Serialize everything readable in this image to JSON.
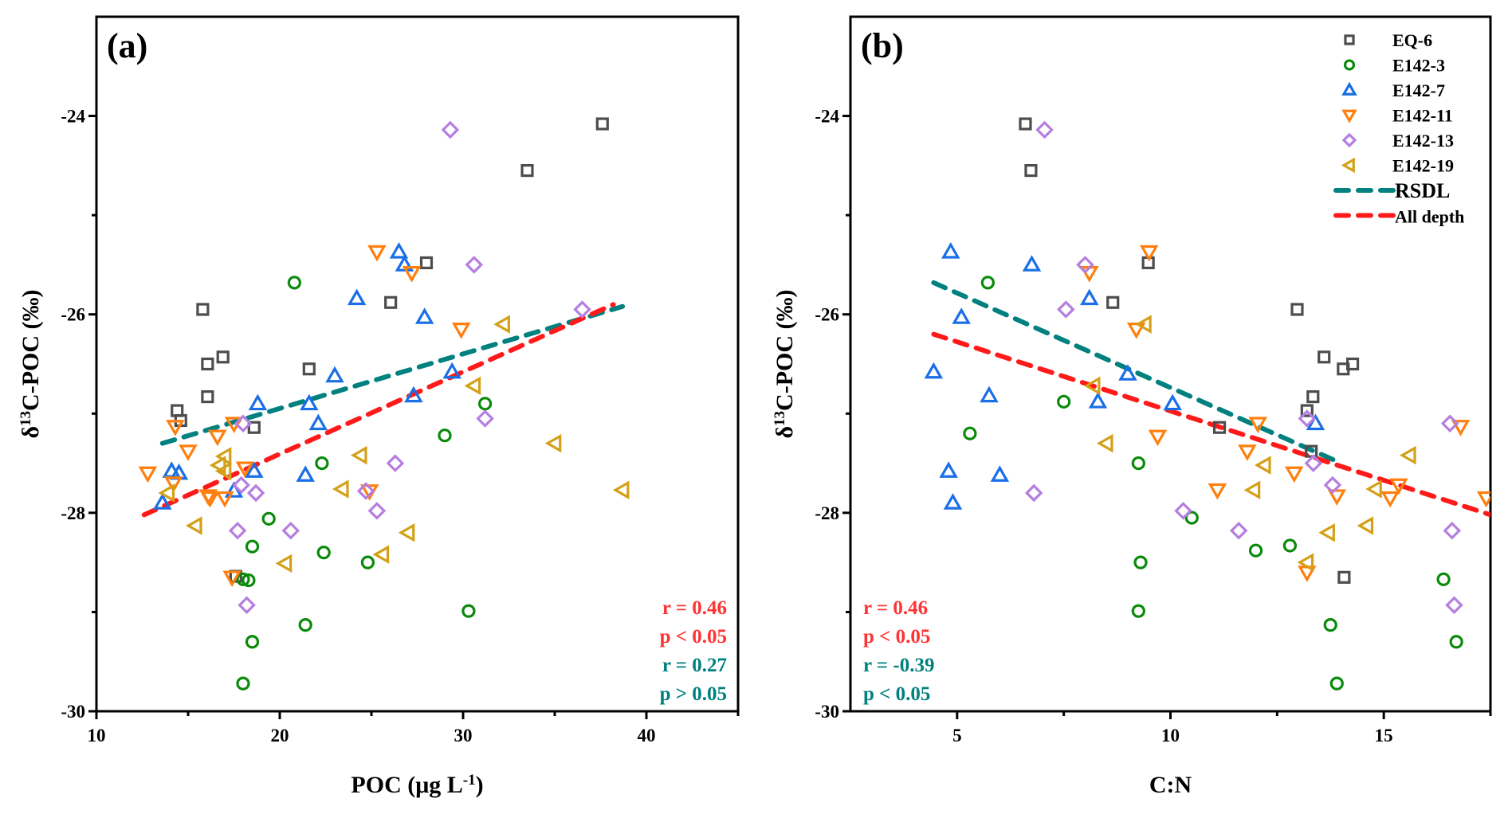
{
  "figure": {
    "ylabel_main": "C-POC (‰)",
    "ylabel_delta": "δ",
    "ylabel_sup": "13"
  },
  "chart_data": [
    {
      "type": "scatter",
      "panel_label": "(a)",
      "xlabel": "POC (μg L",
      "xlabel_sup": "-1",
      "xlabel_end": ")",
      "ylabel": "δ13C-POC (‰)",
      "xlim": [
        10,
        45
      ],
      "ylim": [
        -30,
        -23
      ],
      "xticks": [
        10,
        20,
        30,
        40
      ],
      "xminor": [
        15,
        25,
        35,
        45
      ],
      "yticks": [
        -30,
        -28,
        -26,
        -24
      ],
      "yminor": [
        -29,
        -27,
        -25
      ],
      "series": [
        {
          "name": "EQ-6",
          "marker": "square",
          "color": "#4d4d4d",
          "points": [
            [
              37.6,
              -24.08
            ],
            [
              33.5,
              -24.55
            ],
            [
              28.0,
              -25.48
            ],
            [
              26.05,
              -25.88
            ],
            [
              15.8,
              -25.95
            ],
            [
              21.6,
              -26.55
            ],
            [
              16.9,
              -26.43
            ],
            [
              16.06,
              -26.5
            ],
            [
              16.06,
              -26.83
            ],
            [
              14.4,
              -26.97
            ],
            [
              14.6,
              -27.07
            ],
            [
              18.6,
              -27.14
            ],
            [
              17.6,
              -28.64
            ]
          ]
        },
        {
          "name": "E142-3",
          "marker": "circle",
          "color": "#0a8a0a",
          "points": [
            [
              20.8,
              -25.68
            ],
            [
              31.2,
              -26.9
            ],
            [
              29.0,
              -27.22
            ],
            [
              22.3,
              -27.5
            ],
            [
              19.4,
              -28.06
            ],
            [
              18.5,
              -28.34
            ],
            [
              22.4,
              -28.4
            ],
            [
              24.8,
              -28.5
            ],
            [
              18.0,
              -28.67
            ],
            [
              18.3,
              -28.68
            ],
            [
              30.3,
              -28.99
            ],
            [
              21.4,
              -29.13
            ],
            [
              18.5,
              -29.3
            ],
            [
              18.0,
              -29.72
            ]
          ]
        },
        {
          "name": "E142-7",
          "marker": "triangle-up",
          "color": "#1a6fe6",
          "points": [
            [
              26.5,
              -25.37
            ],
            [
              26.8,
              -25.5
            ],
            [
              24.2,
              -25.84
            ],
            [
              27.9,
              -26.03
            ],
            [
              23.0,
              -26.62
            ],
            [
              29.4,
              -26.58
            ],
            [
              18.8,
              -26.9
            ],
            [
              21.6,
              -26.9
            ],
            [
              27.3,
              -26.82
            ],
            [
              22.1,
              -27.1
            ],
            [
              14.1,
              -27.58
            ],
            [
              14.5,
              -27.6
            ],
            [
              18.6,
              -27.58
            ],
            [
              21.4,
              -27.62
            ],
            [
              17.5,
              -27.78
            ],
            [
              13.6,
              -27.9
            ]
          ]
        },
        {
          "name": "E142-11",
          "marker": "triangle-down",
          "color": "#ff7f0e",
          "points": [
            [
              25.3,
              -25.37
            ],
            [
              27.2,
              -25.58
            ],
            [
              29.9,
              -26.15
            ],
            [
              14.3,
              -27.13
            ],
            [
              17.5,
              -27.1
            ],
            [
              16.6,
              -27.23
            ],
            [
              15.0,
              -27.38
            ],
            [
              12.8,
              -27.6
            ],
            [
              14.2,
              -27.7
            ],
            [
              18.1,
              -27.55
            ],
            [
              24.9,
              -27.78
            ],
            [
              16.1,
              -27.83
            ],
            [
              16.2,
              -27.85
            ],
            [
              17.0,
              -27.85
            ],
            [
              17.4,
              -28.65
            ]
          ]
        },
        {
          "name": "E142-13",
          "marker": "diamond",
          "color": "#b57ee0",
          "points": [
            [
              29.3,
              -24.14
            ],
            [
              36.5,
              -25.95
            ],
            [
              30.6,
              -25.5
            ],
            [
              31.2,
              -27.05
            ],
            [
              18.0,
              -27.1
            ],
            [
              26.3,
              -27.5
            ],
            [
              17.9,
              -27.72
            ],
            [
              24.7,
              -27.78
            ],
            [
              18.7,
              -27.8
            ],
            [
              25.3,
              -27.98
            ],
            [
              20.6,
              -28.18
            ],
            [
              17.7,
              -28.18
            ],
            [
              18.2,
              -28.93
            ]
          ]
        },
        {
          "name": "E142-19",
          "marker": "triangle-left",
          "color": "#d4a017",
          "points": [
            [
              32.2,
              -26.1
            ],
            [
              30.6,
              -26.72
            ],
            [
              35.0,
              -27.3
            ],
            [
              24.4,
              -27.42
            ],
            [
              17.0,
              -27.43
            ],
            [
              16.7,
              -27.52
            ],
            [
              17.0,
              -27.58
            ],
            [
              13.9,
              -27.8
            ],
            [
              23.4,
              -27.76
            ],
            [
              38.7,
              -27.77
            ],
            [
              15.4,
              -28.13
            ],
            [
              27.0,
              -28.2
            ],
            [
              20.3,
              -28.51
            ],
            [
              25.6,
              -28.42
            ]
          ]
        }
      ],
      "fit_lines": [
        {
          "name": "RSDL",
          "color": "#00807f",
          "from": [
            13.6,
            -27.3
          ],
          "to": [
            38.7,
            -25.92
          ]
        },
        {
          "name": "All depth",
          "color": "#ff1a1a",
          "from": [
            12.6,
            -28.02
          ],
          "to": [
            38.2,
            -25.9
          ]
        }
      ],
      "stats": [
        {
          "text": "r = 0.46",
          "color": "#ff3333"
        },
        {
          "text": "p < 0.05",
          "color": "#ff3333"
        },
        {
          "text": "r = 0.27",
          "color": "#00807f"
        },
        {
          "text": "p > 0.05",
          "color": "#00807f"
        }
      ],
      "stats_position": "bottom-right",
      "legend": false
    },
    {
      "type": "scatter",
      "panel_label": "(b)",
      "xlabel": "C:N",
      "ylabel": "δ13C-POC (‰)",
      "xlim": [
        2.5,
        17.5
      ],
      "ylim": [
        -30,
        -23
      ],
      "xticks": [
        5,
        10,
        15
      ],
      "xminor": [
        7.5,
        12.5,
        17.5
      ],
      "yticks": [
        -30,
        -28,
        -26,
        -24
      ],
      "yminor": [
        -29,
        -27,
        -25
      ],
      "series": [
        {
          "name": "EQ-6",
          "marker": "square",
          "color": "#4d4d4d",
          "points": [
            [
              6.6,
              -24.08
            ],
            [
              6.73,
              -24.55
            ],
            [
              9.48,
              -25.48
            ],
            [
              8.65,
              -25.88
            ],
            [
              12.97,
              -25.95
            ],
            [
              13.6,
              -26.43
            ],
            [
              14.27,
              -26.5
            ],
            [
              14.05,
              -26.55
            ],
            [
              13.34,
              -26.83
            ],
            [
              13.2,
              -26.97
            ],
            [
              11.15,
              -27.14
            ],
            [
              13.3,
              -27.38
            ],
            [
              14.07,
              -28.65
            ]
          ]
        },
        {
          "name": "E142-3",
          "marker": "circle",
          "color": "#0a8a0a",
          "points": [
            [
              5.72,
              -25.68
            ],
            [
              7.5,
              -26.88
            ],
            [
              5.3,
              -27.2
            ],
            [
              9.25,
              -27.5
            ],
            [
              10.5,
              -28.05
            ],
            [
              12.8,
              -28.33
            ],
            [
              12.0,
              -28.38
            ],
            [
              9.3,
              -28.5
            ],
            [
              16.4,
              -28.67
            ],
            [
              9.25,
              -28.99
            ],
            [
              13.75,
              -29.13
            ],
            [
              16.7,
              -29.3
            ],
            [
              13.9,
              -29.72
            ]
          ]
        },
        {
          "name": "E142-7",
          "marker": "triangle-up",
          "color": "#1a6fe6",
          "points": [
            [
              4.85,
              -25.37
            ],
            [
              6.75,
              -25.5
            ],
            [
              8.1,
              -25.84
            ],
            [
              5.1,
              -26.03
            ],
            [
              4.45,
              -26.58
            ],
            [
              9.0,
              -26.6
            ],
            [
              5.75,
              -26.82
            ],
            [
              8.3,
              -26.88
            ],
            [
              10.05,
              -26.9
            ],
            [
              13.4,
              -27.1
            ],
            [
              4.8,
              -27.58
            ],
            [
              6.0,
              -27.62
            ],
            [
              4.9,
              -27.9
            ]
          ]
        },
        {
          "name": "E142-11",
          "marker": "triangle-down",
          "color": "#ff7f0e",
          "points": [
            [
              9.5,
              -25.37
            ],
            [
              8.1,
              -25.58
            ],
            [
              9.2,
              -26.15
            ],
            [
              12.05,
              -27.1
            ],
            [
              16.8,
              -27.13
            ],
            [
              9.7,
              -27.23
            ],
            [
              11.8,
              -27.38
            ],
            [
              12.9,
              -27.6
            ],
            [
              15.35,
              -27.72
            ],
            [
              11.1,
              -27.77
            ],
            [
              13.9,
              -27.83
            ],
            [
              15.15,
              -27.85
            ],
            [
              17.4,
              -27.85
            ],
            [
              13.2,
              -28.6
            ]
          ]
        },
        {
          "name": "E142-13",
          "marker": "diamond",
          "color": "#b57ee0",
          "points": [
            [
              7.05,
              -24.14
            ],
            [
              8.0,
              -25.5
            ],
            [
              7.55,
              -25.95
            ],
            [
              13.2,
              -27.05
            ],
            [
              16.55,
              -27.1
            ],
            [
              13.35,
              -27.5
            ],
            [
              13.8,
              -27.72
            ],
            [
              6.8,
              -27.8
            ],
            [
              10.3,
              -27.98
            ],
            [
              11.6,
              -28.18
            ],
            [
              16.6,
              -28.18
            ],
            [
              16.65,
              -28.93
            ]
          ]
        },
        {
          "name": "E142-19",
          "marker": "triangle-left",
          "color": "#d4a017",
          "points": [
            [
              9.4,
              -26.1
            ],
            [
              8.2,
              -26.72
            ],
            [
              8.5,
              -27.3
            ],
            [
              15.6,
              -27.42
            ],
            [
              12.2,
              -27.52
            ],
            [
              14.8,
              -27.76
            ],
            [
              11.95,
              -27.77
            ],
            [
              14.6,
              -28.13
            ],
            [
              13.7,
              -28.2
            ],
            [
              13.2,
              -28.5
            ]
          ]
        }
      ],
      "fit_lines": [
        {
          "name": "RSDL",
          "color": "#00807f",
          "from": [
            4.45,
            -25.68
          ],
          "to": [
            14.0,
            -27.5
          ]
        },
        {
          "name": "All depth",
          "color": "#ff1a1a",
          "from": [
            4.45,
            -26.2
          ],
          "to": [
            17.5,
            -28.02
          ]
        }
      ],
      "stats": [
        {
          "text": "r = 0.46",
          "color": "#ff3333"
        },
        {
          "text": "p < 0.05",
          "color": "#ff3333"
        },
        {
          "text": "r = -0.39",
          "color": "#00807f"
        },
        {
          "text": "p < 0.05",
          "color": "#00807f"
        }
      ],
      "stats_position": "bottom-left",
      "legend": true,
      "legend_position": "top-right"
    }
  ],
  "legend": {
    "items": [
      {
        "label": "EQ-6",
        "marker": "square",
        "color": "#4d4d4d"
      },
      {
        "label": "E142-3",
        "marker": "circle",
        "color": "#0a8a0a"
      },
      {
        "label": "E142-7",
        "marker": "triangle-up",
        "color": "#1a6fe6"
      },
      {
        "label": "E142-11",
        "marker": "triangle-down",
        "color": "#ff7f0e"
      },
      {
        "label": "E142-13",
        "marker": "diamond",
        "color": "#b57ee0"
      },
      {
        "label": "E142-19",
        "marker": "triangle-left",
        "color": "#d4a017"
      },
      {
        "label": "RSDL",
        "marker": "dash",
        "color": "#00807f"
      },
      {
        "label": "All depth",
        "marker": "dash",
        "color": "#ff1a1a"
      }
    ]
  }
}
